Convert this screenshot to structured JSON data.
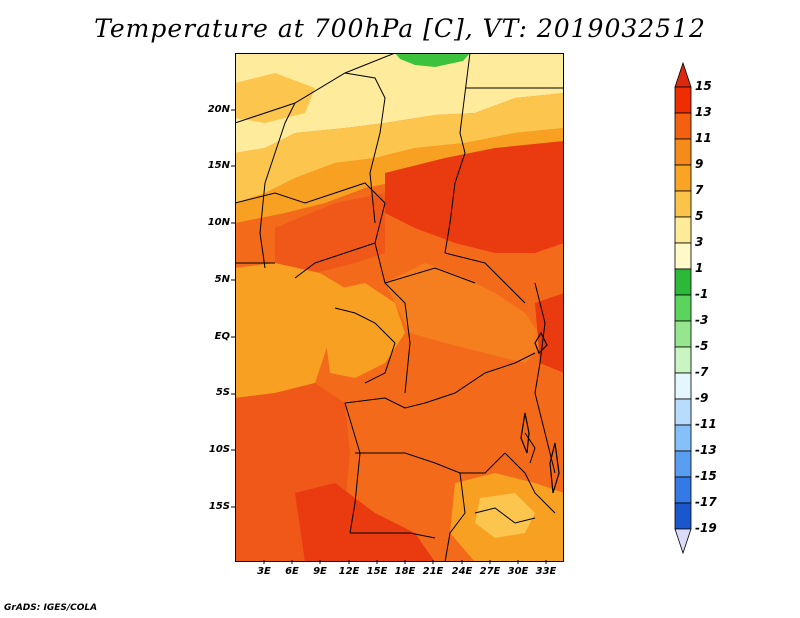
{
  "title": "Temperature at 700hPa [C], VT: 2019032512",
  "footer": "GrADS: IGES/COLA",
  "y_ticks": [
    "20N",
    "15N",
    "10N",
    "5N",
    "EQ",
    "5S",
    "10S",
    "15S"
  ],
  "x_ticks": [
    "3E",
    "6E",
    "9E",
    "12E",
    "15E",
    "18E",
    "21E",
    "24E",
    "27E",
    "30E",
    "33E"
  ],
  "colorbar": {
    "labels": [
      "15",
      "13",
      "11",
      "9",
      "7",
      "5",
      "3",
      "1",
      "-1",
      "-3",
      "-5",
      "-7",
      "-9",
      "-11",
      "-13",
      "-15",
      "-17",
      "-19"
    ],
    "colors": [
      "#ee2d00",
      "#f26010",
      "#f58b1a",
      "#f9a425",
      "#fbc34a",
      "#feeb9a",
      "#fff9c8",
      "#2cb93a",
      "#5bd45e",
      "#96e68f",
      "#c9f5c2",
      "#e4f7ff",
      "#b7dcfc",
      "#85c0fa",
      "#5a9ef1",
      "#3479e6",
      "#1a56cc",
      "#0b2ea8",
      "#08116a"
    ],
    "under_color": "#dcdcf8",
    "over_color": "#dc2a10"
  },
  "map_colors": {
    "darkest": "#ea3a10",
    "dark": "#ef5818",
    "mid": "#f57f1e",
    "orange": "#f8a022",
    "light": "#fbc54e",
    "pale": "#feec9c",
    "green": "#3cc23c",
    "border": "#000000"
  }
}
